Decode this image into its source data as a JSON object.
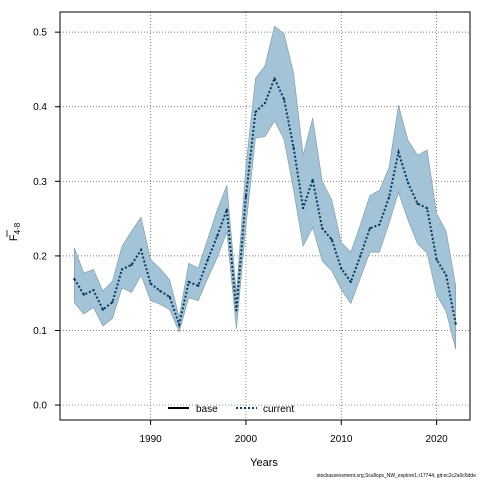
{
  "chart_data": {
    "type": "line",
    "xlabel": "Years",
    "ylabel_main": "F",
    "ylabel_sub": "4-8",
    "xlim": [
      1980.5,
      2023.5
    ],
    "ylim": [
      -0.02,
      0.527
    ],
    "x_ticks": [
      1990,
      2000,
      2010,
      2020
    ],
    "y_ticks": [
      0.0,
      0.1,
      0.2,
      0.3,
      0.4,
      0.5
    ],
    "grid": true,
    "legend_position": "bottom",
    "colors": {
      "band": "#a2c4d6",
      "band_edge": "#7d97a6",
      "current": "#0a3a5e",
      "base": "#000000"
    },
    "x": [
      1982,
      1983,
      1984,
      1985,
      1986,
      1987,
      1988,
      1989,
      1990,
      1991,
      1992,
      1993,
      1994,
      1995,
      1996,
      1997,
      1998,
      1999,
      2000,
      2001,
      2002,
      2003,
      2004,
      2005,
      2006,
      2007,
      2008,
      2009,
      2010,
      2011,
      2012,
      2013,
      2014,
      2015,
      2016,
      2017,
      2018,
      2019,
      2020,
      2021,
      2022
    ],
    "series": [
      {
        "name": "current",
        "style": "dotted",
        "values": [
          0.169,
          0.148,
          0.154,
          0.128,
          0.138,
          0.182,
          0.188,
          0.208,
          0.163,
          0.153,
          0.145,
          0.108,
          0.165,
          0.16,
          0.195,
          0.227,
          0.262,
          0.127,
          0.28,
          0.393,
          0.405,
          0.438,
          0.41,
          0.345,
          0.264,
          0.302,
          0.237,
          0.222,
          0.183,
          0.165,
          0.2,
          0.237,
          0.242,
          0.278,
          0.339,
          0.298,
          0.27,
          0.264,
          0.195,
          0.174,
          0.109
        ]
      }
    ],
    "legend_entries": [
      {
        "name": "base",
        "style": "solid"
      }
    ],
    "band_upper": [
      0.211,
      0.177,
      0.182,
      0.153,
      0.166,
      0.213,
      0.233,
      0.252,
      0.195,
      0.183,
      0.168,
      0.118,
      0.19,
      0.184,
      0.223,
      0.262,
      0.295,
      0.15,
      0.32,
      0.438,
      0.455,
      0.508,
      0.498,
      0.445,
      0.335,
      0.385,
      0.3,
      0.275,
      0.218,
      0.205,
      0.242,
      0.281,
      0.288,
      0.318,
      0.402,
      0.355,
      0.335,
      0.342,
      0.257,
      0.233,
      0.16
    ],
    "band_lower": [
      0.137,
      0.122,
      0.131,
      0.106,
      0.116,
      0.157,
      0.151,
      0.174,
      0.14,
      0.135,
      0.128,
      0.098,
      0.144,
      0.14,
      0.17,
      0.198,
      0.232,
      0.102,
      0.24,
      0.358,
      0.36,
      0.381,
      0.356,
      0.288,
      0.213,
      0.238,
      0.193,
      0.18,
      0.155,
      0.136,
      0.17,
      0.205,
      0.205,
      0.243,
      0.285,
      0.248,
      0.216,
      0.204,
      0.148,
      0.125,
      0.075
    ]
  },
  "footer": "stockassessment.org,Scallops_NW_explore1,r17744, git:ec2c2a0c6dde"
}
